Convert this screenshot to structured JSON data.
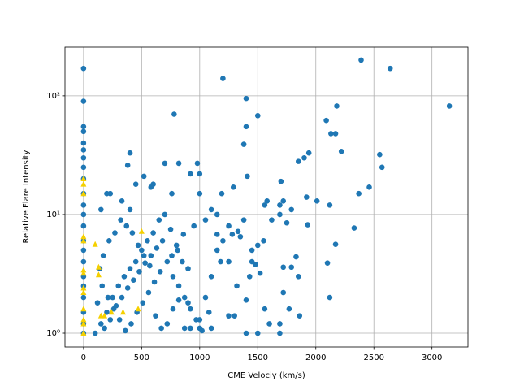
{
  "chart_data": {
    "type": "scatter",
    "xlabel": "CME Velociy (km/s)",
    "ylabel": "Relative Flare Intensity",
    "xlim": [
      -160,
      3310
    ],
    "ylim": [
      0.765,
      257
    ],
    "log_y": true,
    "grid": true,
    "xticks": [
      0,
      500,
      1000,
      1500,
      2000,
      2500,
      3000
    ],
    "yticks": [
      {
        "value": 1,
        "label": "10⁰"
      },
      {
        "value": 10,
        "label": "10¹"
      },
      {
        "value": 100,
        "label": "10²"
      }
    ],
    "series": [
      {
        "color": "#1f77b4",
        "marker": "circle",
        "x": [
          0,
          0,
          0,
          0,
          0,
          0,
          0,
          0,
          0,
          0,
          0,
          0,
          0,
          0,
          0,
          0,
          0,
          0,
          0,
          0,
          0,
          0,
          1200,
          2390,
          2640,
          1400,
          3150,
          2180,
          1500,
          780,
          1400,
          2090,
          2130,
          2170,
          400,
          1380,
          1940,
          1900,
          2550,
          2220,
          2570,
          1850,
          520,
          380,
          700,
          820,
          980,
          1000,
          920,
          1410,
          1700,
          450,
          600,
          580,
          2460,
          1290,
          1190,
          2370,
          230,
          200,
          330,
          760,
          1000,
          1580,
          1720,
          2010,
          2120,
          1920,
          1690,
          150,
          400,
          1100,
          1560,
          1790,
          1620,
          1380,
          1690,
          1750,
          1930,
          2330,
          2170,
          2100,
          2120,
          1860,
          1770,
          1790,
          1720,
          1830,
          1850,
          1720,
          1560,
          1600,
          1690,
          1690,
          1400,
          1500,
          1430,
          1320,
          1250,
          1180,
          1100,
          1050,
          1080,
          1100,
          1000,
          1000,
          900,
          900,
          850,
          800,
          750,
          700,
          650,
          600,
          550,
          500,
          450,
          400,
          350,
          300,
          250,
          200,
          150,
          100,
          180,
          230,
          280,
          330,
          380,
          430,
          480,
          530,
          580,
          630,
          680,
          720,
          770,
          820,
          870,
          920,
          970,
          1020,
          1250,
          1300,
          1150,
          1050,
          950,
          860,
          810,
          760,
          660,
          610,
          560,
          510,
          460,
          410,
          360,
          310,
          260,
          210,
          160,
          120,
          140,
          170,
          220,
          270,
          320,
          370,
          420,
          470,
          520,
          570,
          620,
          670,
          720,
          770,
          820,
          870,
          920,
          1150,
          1200,
          1250,
          1350,
          1450,
          1500,
          1550,
          1450,
          1480,
          1520,
          1280,
          1330,
          1150,
          1400
        ],
        "values": [
          170,
          90,
          55,
          50,
          40,
          35,
          30,
          25,
          20,
          15,
          12,
          10,
          8,
          6,
          5,
          4,
          3,
          2.5,
          2,
          1.5,
          1.2,
          1,
          140,
          200,
          170,
          95,
          82,
          82,
          68,
          70,
          55,
          62,
          48,
          48,
          33,
          39,
          33,
          30,
          32,
          34,
          25,
          28,
          21,
          26,
          27,
          27,
          27,
          22,
          22,
          21,
          19,
          18,
          18,
          17,
          17,
          17,
          15,
          15,
          15,
          15,
          13,
          15,
          15,
          13,
          13,
          13,
          12,
          14,
          12,
          11,
          11,
          11,
          12,
          11,
          9,
          9,
          10,
          8.5,
          8.2,
          7.7,
          5.6,
          3.9,
          2,
          1.4,
          1.6,
          3.6,
          3.6,
          4.4,
          3,
          2.2,
          1.6,
          1.2,
          1,
          1.2,
          1,
          1,
          3,
          2.5,
          4,
          4,
          3,
          2,
          1.5,
          1.1,
          1.1,
          1.3,
          1.8,
          3.5,
          4,
          5.5,
          7.5,
          10,
          9,
          7,
          6,
          5,
          4,
          3.5,
          3,
          2.5,
          2,
          1.5,
          1.2,
          1,
          1.1,
          1.3,
          1.7,
          2,
          2.4,
          2.8,
          3.3,
          3.9,
          4.5,
          5.2,
          6,
          4,
          3,
          2.5,
          2,
          1.6,
          1.3,
          1.05,
          1.4,
          1.4,
          10,
          9,
          8,
          6.8,
          5,
          4.5,
          3.3,
          2.7,
          2.2,
          1.8,
          1.5,
          1.2,
          1.05,
          1.3,
          1.6,
          2,
          2.5,
          1.8,
          3.5,
          4.5,
          6,
          7,
          9,
          8,
          7,
          5.5,
          4.5,
          3.7,
          1.4,
          1.1,
          1.2,
          1.6,
          1.9,
          1.1,
          1.1,
          5,
          6,
          8,
          6.5,
          5,
          5.5,
          6,
          4,
          3.8,
          3.2,
          6.8,
          7.2,
          6.8,
          1.9
        ]
      },
      {
        "color": "#f5d000",
        "marker": "triangle",
        "x": [
          0,
          0,
          0,
          0,
          0,
          0,
          0,
          0,
          0,
          0,
          0,
          0,
          0,
          100,
          130,
          130,
          500,
          470,
          180,
          340,
          240,
          150
        ],
        "values": [
          20,
          18,
          15,
          6.5,
          6,
          3.4,
          3.2,
          2.4,
          2.2,
          1.6,
          1.3,
          1.2,
          1,
          5.6,
          3.6,
          3.1,
          7.2,
          1.6,
          1.4,
          1.5,
          1.5,
          1.4
        ]
      }
    ]
  }
}
